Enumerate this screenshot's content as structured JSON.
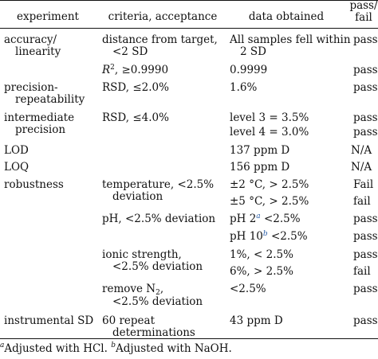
{
  "headers": {
    "experiment": "experiment",
    "criteria": "criteria, acceptance",
    "data": "data obtained",
    "passfail_1": "pass/",
    "passfail_2": "fail"
  },
  "rows": [
    {
      "experiment": [
        "accuracy/",
        "linearity"
      ],
      "criteria": [
        "distance from target,",
        "<2 SD"
      ],
      "data": [
        "All samples fell within",
        "2 SD"
      ],
      "result": "pass"
    },
    {
      "criteria_prefix": "R",
      "criteria_sup": "2",
      "criteria_rest": ", ≥0.9990",
      "data": [
        "0.9999"
      ],
      "result": "pass"
    },
    {
      "experiment": [
        "precision-",
        "repeatability"
      ],
      "criteria": [
        "RSD, ≤2.0%"
      ],
      "data": [
        "1.6%"
      ],
      "result": "pass"
    },
    {
      "experiment": [
        "intermediate",
        "precision"
      ],
      "criteria": [
        "RSD, ≤4.0%"
      ],
      "data": [
        "level 3 = 3.5%"
      ],
      "result": "pass"
    },
    {
      "data": [
        "level 4 = 3.0%"
      ],
      "result": "pass"
    },
    {
      "experiment": [
        "LOD"
      ],
      "data": [
        "137 ppm D"
      ],
      "result": "N/A"
    },
    {
      "experiment": [
        "LOQ"
      ],
      "data": [
        "156 ppm D"
      ],
      "result": "N/A"
    },
    {
      "experiment": [
        "robustness"
      ],
      "criteria": [
        "temperature, <2.5%",
        "deviation"
      ],
      "data": [
        "±2 °C, > 2.5%"
      ],
      "result": "Fail"
    },
    {
      "data": [
        "±5 °C, > 2.5%"
      ],
      "result": "fail"
    },
    {
      "criteria": [
        "pH, <2.5% deviation"
      ],
      "data_prefix": "pH 2",
      "data_sup": "a",
      "data_rest": " <2.5%",
      "result": "pass"
    },
    {
      "data_prefix": "pH 10",
      "data_sup": "b",
      "data_rest": " <2.5%",
      "result": "pass"
    },
    {
      "criteria": [
        "ionic strength,",
        "<2.5% deviation"
      ],
      "data": [
        "1%, < 2.5%"
      ],
      "result": "pass"
    },
    {
      "data": [
        "6%, > 2.5%"
      ],
      "result": "fail"
    },
    {
      "criteria_prefix": "remove N",
      "criteria_sub": "2",
      "criteria_rest": ",",
      "criteria_line2": "<2.5% deviation",
      "data": [
        "<2.5%"
      ],
      "result": "pass"
    },
    {
      "experiment": [
        "instrumental SD"
      ],
      "criteria": [
        "60 repeat",
        "determinations"
      ],
      "data": [
        "43 ppm D"
      ],
      "result": "pass"
    }
  ],
  "footnote": {
    "a_mark": "a",
    "a_text": "Adjusted with HCl.",
    "b_mark": "b",
    "b_text": "Adjusted with NaOH."
  }
}
